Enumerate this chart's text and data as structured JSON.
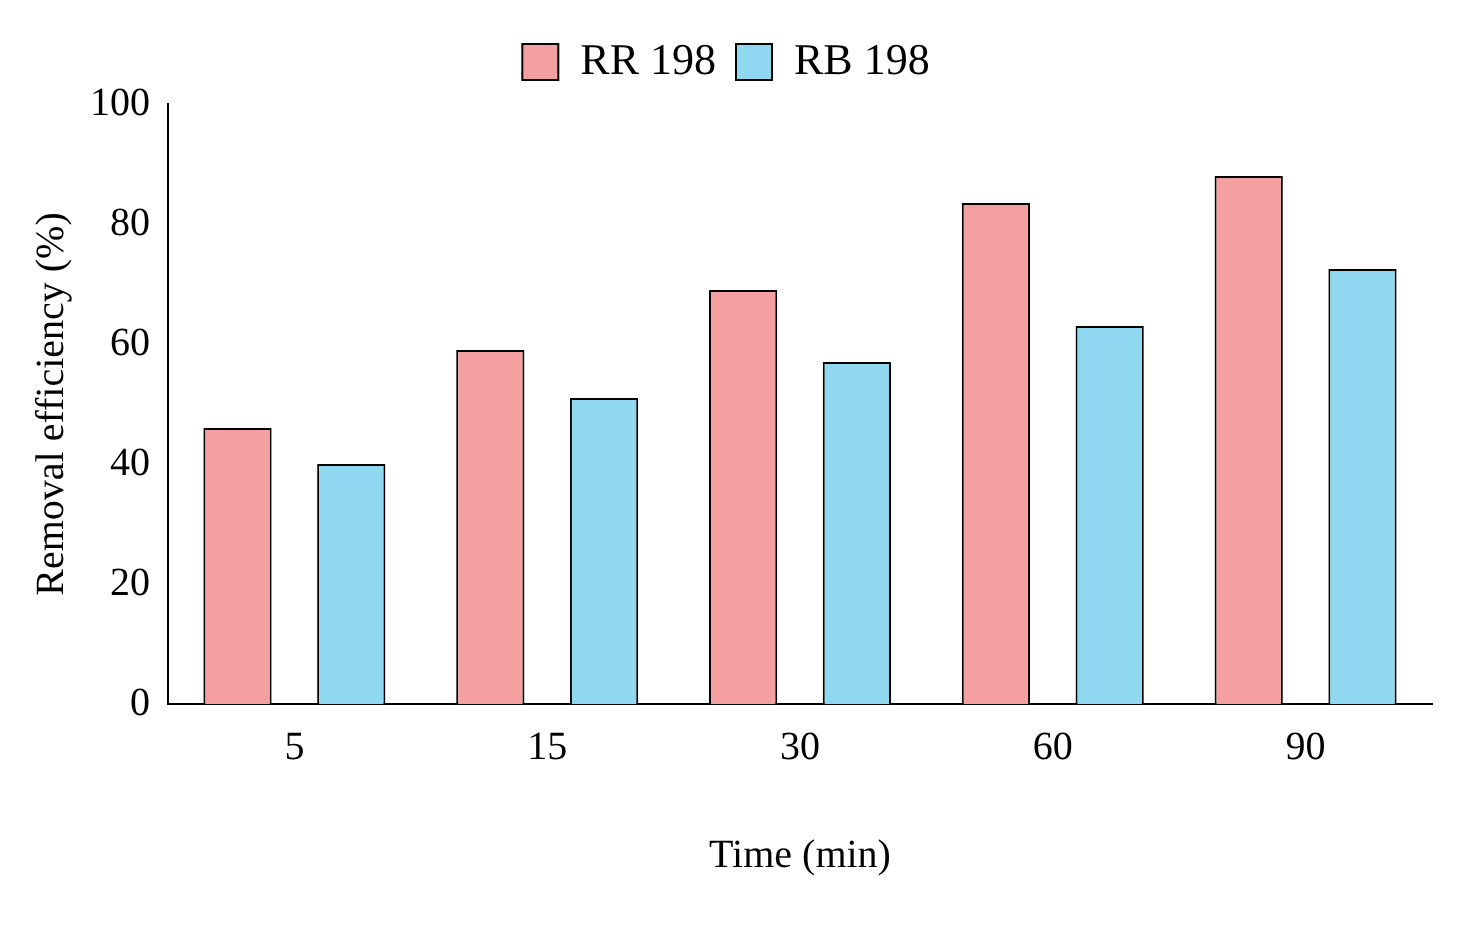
{
  "chart_data": {
    "type": "bar",
    "xlabel": "Time (min)",
    "ylabel": "Removal efficiency (%)",
    "categories": [
      "5",
      "15",
      "30",
      "60",
      "90"
    ],
    "series": [
      {
        "name": "RR 198",
        "color": "#f4a0a0",
        "values": [
          46,
          59,
          69,
          83.5,
          88
        ]
      },
      {
        "name": "RB 198",
        "color": "#8fd8f0",
        "values": [
          40,
          51,
          57,
          63,
          72.5
        ]
      }
    ],
    "ylim": [
      0,
      100
    ],
    "yticks": [
      0,
      20,
      40,
      60,
      80,
      100
    ],
    "grid": false,
    "legend": "top"
  }
}
